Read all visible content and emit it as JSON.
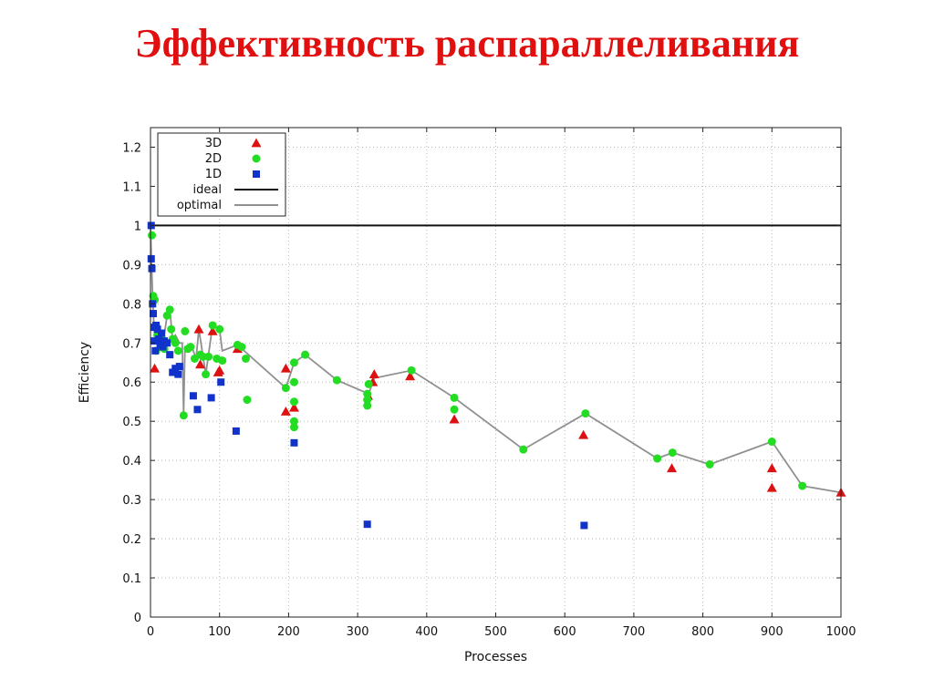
{
  "slide": {
    "title": "Эффективность распараллеливания"
  },
  "colors": {
    "3D": "#dd1111",
    "2D": "#22dd22",
    "1D": "#1133cc",
    "ideal": "#111111",
    "optimal": "#909090"
  },
  "chart_data": {
    "type": "scatter",
    "xlabel": "Processes",
    "ylabel": "Efficiency",
    "xlim": [
      0,
      1000
    ],
    "ylim": [
      0,
      1.25
    ],
    "x_ticks": [
      "0",
      "100",
      "200",
      "300",
      "400",
      "500",
      "600",
      "700",
      "800",
      "900",
      "1000"
    ],
    "y_ticks": [
      "0",
      "0.1",
      "0.2",
      "0.3",
      "0.4",
      "0.5",
      "0.6",
      "0.7",
      "0.8",
      "0.9",
      "1",
      "1.1",
      "1.2"
    ],
    "grid": true,
    "legend_position": "top-left",
    "series": [
      {
        "name": "3D",
        "marker": "triangle",
        "points": [
          [
            6,
            0.635
          ],
          [
            70,
            0.735
          ],
          [
            72,
            0.645
          ],
          [
            90,
            0.73
          ],
          [
            98,
            0.625
          ],
          [
            100,
            0.63
          ],
          [
            126,
            0.685
          ],
          [
            196,
            0.525
          ],
          [
            196,
            0.635
          ],
          [
            208,
            0.535
          ],
          [
            315,
            0.565
          ],
          [
            322,
            0.6
          ],
          [
            324,
            0.62
          ],
          [
            376,
            0.615
          ],
          [
            440,
            0.505
          ],
          [
            627,
            0.465
          ],
          [
            755,
            0.38
          ],
          [
            900,
            0.38
          ],
          [
            900,
            0.33
          ],
          [
            1000,
            0.318
          ]
        ]
      },
      {
        "name": "2D",
        "marker": "circle",
        "points": [
          [
            2,
            0.975
          ],
          [
            4,
            0.82
          ],
          [
            6,
            0.81
          ],
          [
            8,
            0.68
          ],
          [
            10,
            0.72
          ],
          [
            16,
            0.715
          ],
          [
            20,
            0.685
          ],
          [
            24,
            0.77
          ],
          [
            28,
            0.785
          ],
          [
            30,
            0.735
          ],
          [
            32,
            0.71
          ],
          [
            36,
            0.7
          ],
          [
            40,
            0.68
          ],
          [
            48,
            0.515
          ],
          [
            50,
            0.73
          ],
          [
            54,
            0.685
          ],
          [
            58,
            0.69
          ],
          [
            64,
            0.66
          ],
          [
            72,
            0.67
          ],
          [
            76,
            0.665
          ],
          [
            80,
            0.62
          ],
          [
            84,
            0.665
          ],
          [
            90,
            0.745
          ],
          [
            96,
            0.66
          ],
          [
            100,
            0.735
          ],
          [
            104,
            0.655
          ],
          [
            126,
            0.695
          ],
          [
            132,
            0.69
          ],
          [
            138,
            0.66
          ],
          [
            140,
            0.555
          ],
          [
            196,
            0.585
          ],
          [
            208,
            0.65
          ],
          [
            208,
            0.6
          ],
          [
            208,
            0.55
          ],
          [
            208,
            0.5
          ],
          [
            208,
            0.485
          ],
          [
            224,
            0.67
          ],
          [
            270,
            0.605
          ],
          [
            314,
            0.57
          ],
          [
            314,
            0.555
          ],
          [
            314,
            0.54
          ],
          [
            316,
            0.595
          ],
          [
            378,
            0.63
          ],
          [
            440,
            0.56
          ],
          [
            440,
            0.53
          ],
          [
            540,
            0.428
          ],
          [
            630,
            0.52
          ],
          [
            734,
            0.405
          ],
          [
            756,
            0.42
          ],
          [
            810,
            0.39
          ],
          [
            900,
            0.448
          ],
          [
            944,
            0.335
          ]
        ]
      },
      {
        "name": "1D",
        "marker": "square",
        "points": [
          [
            1,
            1.0
          ],
          [
            1,
            0.915
          ],
          [
            2,
            0.89
          ],
          [
            3,
            0.8
          ],
          [
            4,
            0.775
          ],
          [
            5,
            0.74
          ],
          [
            6,
            0.705
          ],
          [
            7,
            0.68
          ],
          [
            8,
            0.745
          ],
          [
            10,
            0.735
          ],
          [
            12,
            0.71
          ],
          [
            14,
            0.695
          ],
          [
            16,
            0.725
          ],
          [
            18,
            0.69
          ],
          [
            20,
            0.705
          ],
          [
            24,
            0.7
          ],
          [
            28,
            0.67
          ],
          [
            32,
            0.625
          ],
          [
            36,
            0.635
          ],
          [
            40,
            0.62
          ],
          [
            42,
            0.64
          ],
          [
            62,
            0.565
          ],
          [
            68,
            0.53
          ],
          [
            88,
            0.56
          ],
          [
            102,
            0.6
          ],
          [
            124,
            0.475
          ],
          [
            208,
            0.445
          ],
          [
            314,
            0.237
          ],
          [
            628,
            0.234
          ]
        ]
      },
      {
        "name": "ideal",
        "type": "line",
        "points": [
          [
            0,
            1.0
          ],
          [
            1000,
            1.0
          ]
        ]
      },
      {
        "name": "optimal",
        "type": "line",
        "points": [
          [
            0,
            1.0
          ],
          [
            1,
            0.93
          ],
          [
            3,
            0.82
          ],
          [
            5,
            0.74
          ],
          [
            8,
            0.71
          ],
          [
            12,
            0.75
          ],
          [
            16,
            0.71
          ],
          [
            20,
            0.72
          ],
          [
            24,
            0.77
          ],
          [
            28,
            0.785
          ],
          [
            32,
            0.71
          ],
          [
            36,
            0.72
          ],
          [
            42,
            0.7
          ],
          [
            46,
            0.7
          ],
          [
            48,
            0.52
          ],
          [
            50,
            0.69
          ],
          [
            60,
            0.69
          ],
          [
            66,
            0.66
          ],
          [
            70,
            0.735
          ],
          [
            80,
            0.62
          ],
          [
            90,
            0.745
          ],
          [
            100,
            0.735
          ],
          [
            104,
            0.68
          ],
          [
            126,
            0.695
          ],
          [
            196,
            0.585
          ],
          [
            208,
            0.65
          ],
          [
            224,
            0.67
          ],
          [
            270,
            0.605
          ],
          [
            316,
            0.57
          ],
          [
            324,
            0.61
          ],
          [
            378,
            0.63
          ],
          [
            440,
            0.56
          ],
          [
            540,
            0.428
          ],
          [
            630,
            0.52
          ],
          [
            734,
            0.405
          ],
          [
            756,
            0.42
          ],
          [
            810,
            0.39
          ],
          [
            900,
            0.448
          ],
          [
            944,
            0.335
          ],
          [
            1000,
            0.318
          ]
        ]
      }
    ]
  }
}
